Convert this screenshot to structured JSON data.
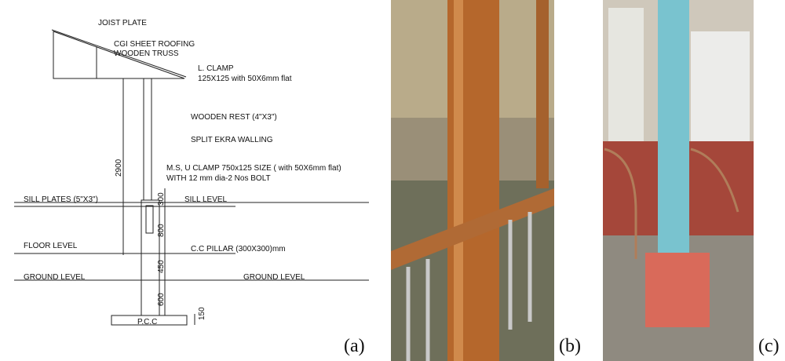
{
  "labels": {
    "joist_plate": "JOIST PLATE",
    "cgi_roofing": "CGI SHEET ROOFING",
    "wooden_truss": "WOODEN TRUSS",
    "l_clamp": "L. CLAMP",
    "l_clamp_size": "125X125 with 50X6mm flat",
    "wooden_rest": "WOODEN REST (4\"X3\")",
    "split_ekra": "SPLIT EKRA WALLING",
    "u_clamp": "M.S, U CLAMP 750x125 SIZE ( with 50X6mm flat)",
    "u_clamp_bolt": "WITH 12 mm dia-2 Nos BOLT",
    "sill_plates": "SILL PLATES (5\"X3\")",
    "sill_level": "SILL LEVEL",
    "floor_level": "FLOOR LEVEL",
    "cc_pillar": "C.C PILLAR (300X300)mm",
    "ground_level_left": "GROUND LEVEL",
    "ground_level_right": "GROUND LEVEL",
    "pcc": "P.C.C"
  },
  "dimensions": {
    "wall_height": 2900,
    "sill": 300,
    "pillar_upper": 800,
    "pillar_mid": 450,
    "pillar_lower": 600,
    "footing": 150
  },
  "panels": {
    "a": "(a)",
    "b": "(b)",
    "c": "(c)"
  }
}
